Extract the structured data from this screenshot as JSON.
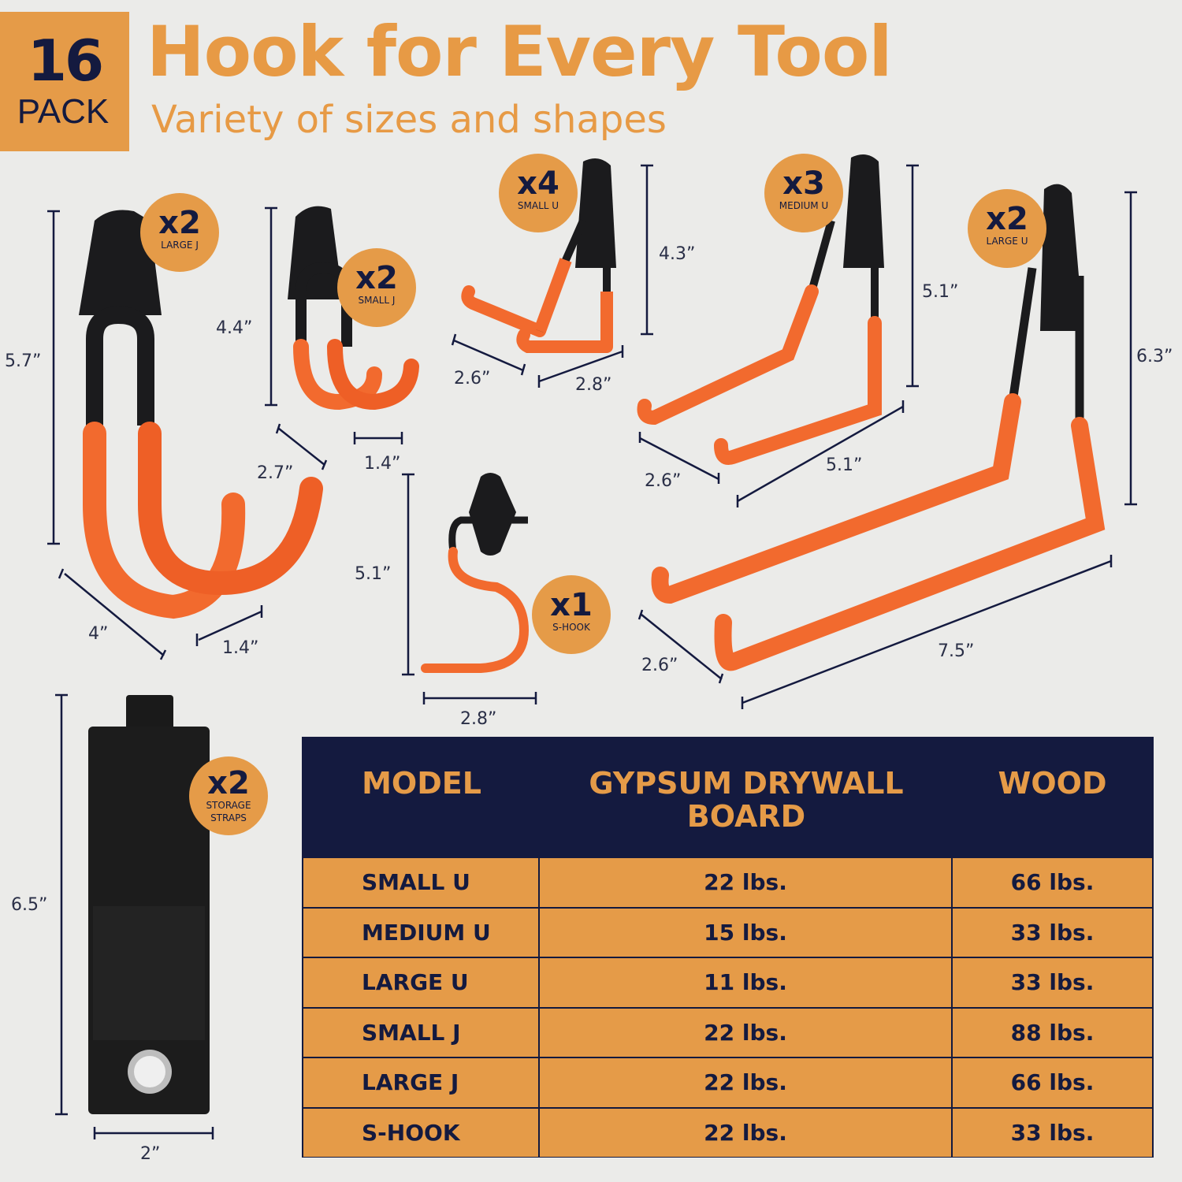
{
  "header": {
    "pack_count": "16",
    "pack_label": "PACK",
    "title": "Hook for Every Tool",
    "subtitle": "Variety of sizes and shapes"
  },
  "colors": {
    "accent": "#e59b48",
    "navy": "#141a3f",
    "hook_orange": "#f26a2e",
    "background": "#ebebe9"
  },
  "badges": {
    "large_j": {
      "qty": "x2",
      "label": "LARGE J"
    },
    "small_j": {
      "qty": "x2",
      "label": "SMALL J"
    },
    "small_u": {
      "qty": "x4",
      "label": "SMALL U"
    },
    "medium_u": {
      "qty": "x3",
      "label": "MEDIUM U"
    },
    "large_u": {
      "qty": "x2",
      "label": "LARGE U"
    },
    "s_hook": {
      "qty": "x1",
      "label": "S-HOOK"
    },
    "straps": {
      "qty": "x2",
      "label1": "STORAGE",
      "label2": "STRAPS"
    }
  },
  "dimensions": {
    "large_j": {
      "height": "5.7”",
      "depth": "4”",
      "width": "1.4”"
    },
    "small_j": {
      "height": "4.4”",
      "depth": "2.7”",
      "width": "1.4”"
    },
    "small_u": {
      "height": "4.3”",
      "depth": "2.6”",
      "width": "2.8”"
    },
    "medium_u": {
      "height": "5.1”",
      "depth": "2.6”",
      "width": "5.1”"
    },
    "large_u": {
      "height": "6.3”",
      "depth": "2.6”",
      "width": "7.5”"
    },
    "s_hook": {
      "height": "5.1”",
      "width": "2.8”"
    },
    "straps": {
      "height": "6.5”",
      "width": "2”"
    }
  },
  "table": {
    "headers": [
      "MODEL",
      "GYPSUM DRYWALL BOARD",
      "WOOD"
    ],
    "rows": [
      [
        "SMALL U",
        "22 lbs.",
        "66 lbs."
      ],
      [
        "MEDIUM U",
        "15 lbs.",
        "33 lbs."
      ],
      [
        "LARGE U",
        "11 lbs.",
        "33 lbs."
      ],
      [
        "SMALL J",
        "22 lbs.",
        "88 lbs."
      ],
      [
        "LARGE J",
        "22 lbs.",
        "66 lbs."
      ],
      [
        "S-HOOK",
        "22 lbs.",
        "33 lbs."
      ]
    ]
  }
}
